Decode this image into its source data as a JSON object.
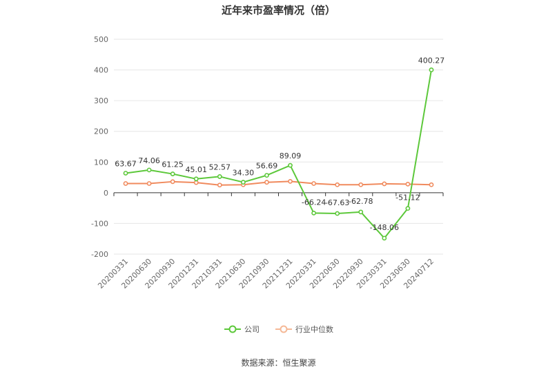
{
  "chart_data": {
    "type": "line",
    "title": "近年来市盈率情况（倍）",
    "categories": [
      "20200331",
      "20200630",
      "20200930",
      "20201231",
      "20210331",
      "20210630",
      "20210930",
      "20211231",
      "20220331",
      "20220630",
      "20220930",
      "20230331",
      "20230630",
      "20240712"
    ],
    "series": [
      {
        "name": "公司",
        "color": "#5cc83a",
        "values": [
          63.67,
          74.06,
          61.25,
          45.01,
          52.57,
          34.3,
          56.69,
          89.09,
          -66.24,
          -67.63,
          -62.78,
          -148.06,
          -51.12,
          400.27
        ],
        "labels": [
          "63.67",
          "74.06",
          "61.25",
          "45.01",
          "52.57",
          "34.30",
          "56.69",
          "89.09",
          "-66.24",
          "-67.63",
          "-62.78",
          "-148.06",
          "-51.12",
          "400.27"
        ]
      },
      {
        "name": "行业中位数",
        "color": "#f08a5d",
        "values": [
          30,
          30,
          36,
          33,
          25,
          26,
          34,
          37,
          30,
          26,
          26,
          29,
          28,
          26
        ]
      }
    ],
    "y_ticks": [
      "500",
      "400",
      "300",
      "200",
      "100",
      "0",
      "-100",
      "-200"
    ],
    "ylim": [
      -200,
      500
    ],
    "grid": true,
    "legend_position": "bottom"
  },
  "source": "数据来源：恒生聚源"
}
